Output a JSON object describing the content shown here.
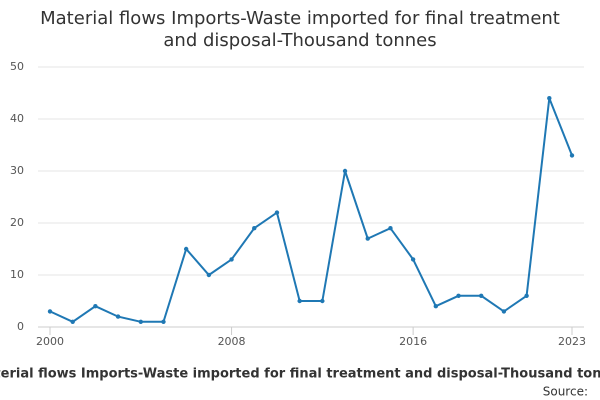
{
  "chart_data": {
    "type": "line",
    "title": [
      "Material flows Imports-Waste imported for final treatment",
      "and disposal-Thousand tonnes"
    ],
    "x_label": "Material flows Imports-Waste imported for final treatment and disposal-Thousand tonnes",
    "source": "Source:",
    "x": [
      2000,
      2001,
      2002,
      2003,
      2004,
      2005,
      2006,
      2007,
      2008,
      2009,
      2010,
      2011,
      2012,
      2013,
      2014,
      2015,
      2016,
      2017,
      2018,
      2019,
      2020,
      2021,
      2022,
      2023
    ],
    "series": [
      {
        "color": "#1f78b4",
        "values": [
          3,
          1,
          4,
          2,
          1,
          1,
          15,
          10,
          13,
          19,
          22,
          5,
          5,
          30,
          17,
          19,
          13,
          4,
          6,
          6,
          3,
          6,
          44,
          33
        ]
      }
    ],
    "xlim": [
      2000,
      2023
    ],
    "xticks": [
      2000,
      2008,
      2016,
      2023
    ],
    "ylim": [
      0,
      50
    ],
    "yticks": [
      0,
      10,
      20,
      30,
      40,
      50
    ],
    "grid": true
  }
}
